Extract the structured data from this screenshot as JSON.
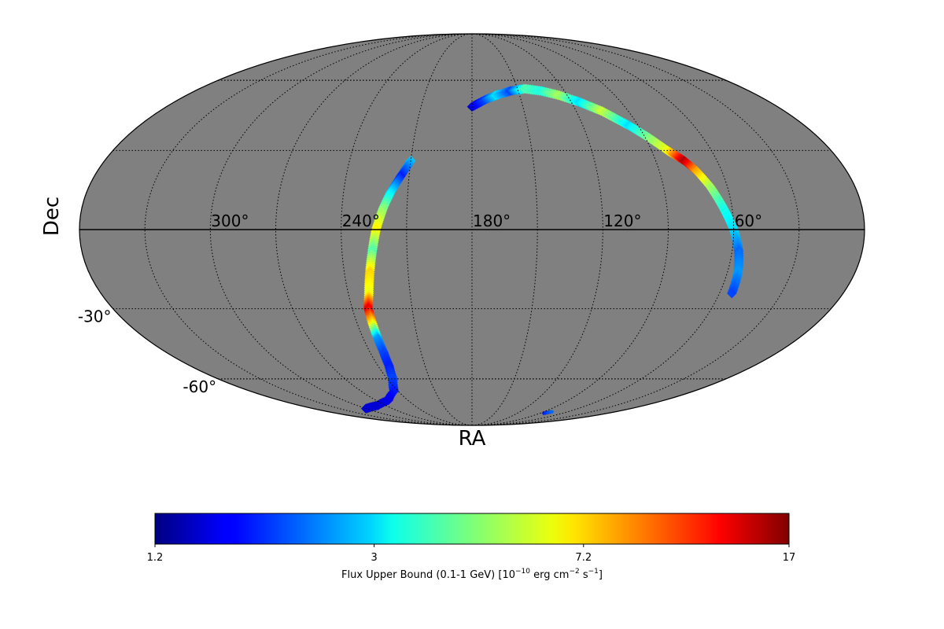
{
  "chart_data": {
    "type": "heatmap",
    "projection": "mollweide",
    "coordinate_system": "equatorial",
    "xlabel": "RA",
    "ylabel": "Dec",
    "ra_tick_labels": [
      {
        "ra": 300,
        "label": "300°"
      },
      {
        "ra": 240,
        "label": "240°"
      },
      {
        "ra": 180,
        "label": "180°"
      },
      {
        "ra": 120,
        "label": "120°"
      },
      {
        "ra": 60,
        "label": "60°"
      }
    ],
    "dec_tick_labels": [
      {
        "dec": -30,
        "label": "-30°"
      },
      {
        "dec": -60,
        "label": "-60°"
      }
    ],
    "graticule_ra_step_deg": 30,
    "graticule_dec_step_deg": 30,
    "background_color": "#808080",
    "colorbar": {
      "colormap": "jet",
      "scale": "log",
      "min": 1.2,
      "max": 17,
      "ticks": [
        1.2,
        3,
        7.2,
        17
      ],
      "tick_labels": [
        "1.2",
        "3",
        "7.2",
        "17"
      ],
      "label_main": "Flux Upper Bound (0.1-1 GeV) [10",
      "label_exp1": "−10",
      "label_mid1": " erg cm",
      "label_exp2": "−2",
      "label_mid2": " s",
      "label_exp3": "−1",
      "label_end": "]"
    },
    "bands": [
      {
        "name": "northern-arc",
        "points": [
          {
            "ra": 180,
            "dec": 48,
            "flux": 1.5
          },
          {
            "ra": 172,
            "dec": 51,
            "flux": 2.0
          },
          {
            "ra": 165,
            "dec": 53,
            "flux": 3.0
          },
          {
            "ra": 155,
            "dec": 55,
            "flux": 2.0
          },
          {
            "ra": 145,
            "dec": 56,
            "flux": 4.0
          },
          {
            "ra": 135,
            "dec": 55,
            "flux": 3.5
          },
          {
            "ra": 125,
            "dec": 53,
            "flux": 5.0
          },
          {
            "ra": 115,
            "dec": 50,
            "flux": 3.0
          },
          {
            "ra": 105,
            "dec": 46,
            "flux": 5.5
          },
          {
            "ra": 95,
            "dec": 40,
            "flux": 3.0
          },
          {
            "ra": 88,
            "dec": 35,
            "flux": 4.5
          },
          {
            "ra": 82,
            "dec": 30,
            "flux": 6.0
          },
          {
            "ra": 76,
            "dec": 26,
            "flux": 15.0
          },
          {
            "ra": 72,
            "dec": 22,
            "flux": 8.0
          },
          {
            "ra": 68,
            "dec": 16,
            "flux": 5.0
          },
          {
            "ra": 64,
            "dec": 8,
            "flux": 3.5
          },
          {
            "ra": 60,
            "dec": 0,
            "flux": 3.0
          },
          {
            "ra": 57,
            "dec": -8,
            "flux": 2.2
          },
          {
            "ra": 55,
            "dec": -16,
            "flux": 2.5
          },
          {
            "ra": 54,
            "dec": -24,
            "flux": 2.0
          }
        ]
      },
      {
        "name": "southern-arc",
        "points": [
          {
            "ra": 210,
            "dec": 26,
            "flux": 2.8
          },
          {
            "ra": 214,
            "dec": 20,
            "flux": 1.8
          },
          {
            "ra": 218,
            "dec": 14,
            "flux": 3.0
          },
          {
            "ra": 221,
            "dec": 8,
            "flux": 4.5
          },
          {
            "ra": 224,
            "dec": 0,
            "flux": 6.5
          },
          {
            "ra": 226,
            "dec": -8,
            "flux": 4.0
          },
          {
            "ra": 228,
            "dec": -16,
            "flux": 7.0
          },
          {
            "ra": 230,
            "dec": -24,
            "flux": 6.0
          },
          {
            "ra": 232,
            "dec": -30,
            "flux": 13.0
          },
          {
            "ra": 232,
            "dec": -36,
            "flux": 6.5
          },
          {
            "ra": 232,
            "dec": -42,
            "flux": 2.5
          },
          {
            "ra": 232,
            "dec": -48,
            "flux": 2.0
          },
          {
            "ra": 233,
            "dec": -54,
            "flux": 1.8
          },
          {
            "ra": 236,
            "dec": -60,
            "flux": 2.0
          },
          {
            "ra": 243,
            "dec": -66,
            "flux": 1.8
          },
          {
            "ra": 258,
            "dec": -71,
            "flux": 1.6
          },
          {
            "ra": 278,
            "dec": -74,
            "flux": 1.5
          },
          {
            "ra": 300,
            "dec": -76,
            "flux": 1.5
          }
        ]
      },
      {
        "name": "small-patch",
        "points": [
          {
            "ra": 85,
            "dec": -79,
            "flux": 1.8
          },
          {
            "ra": 80,
            "dec": -78,
            "flux": 2.2
          }
        ]
      }
    ]
  }
}
